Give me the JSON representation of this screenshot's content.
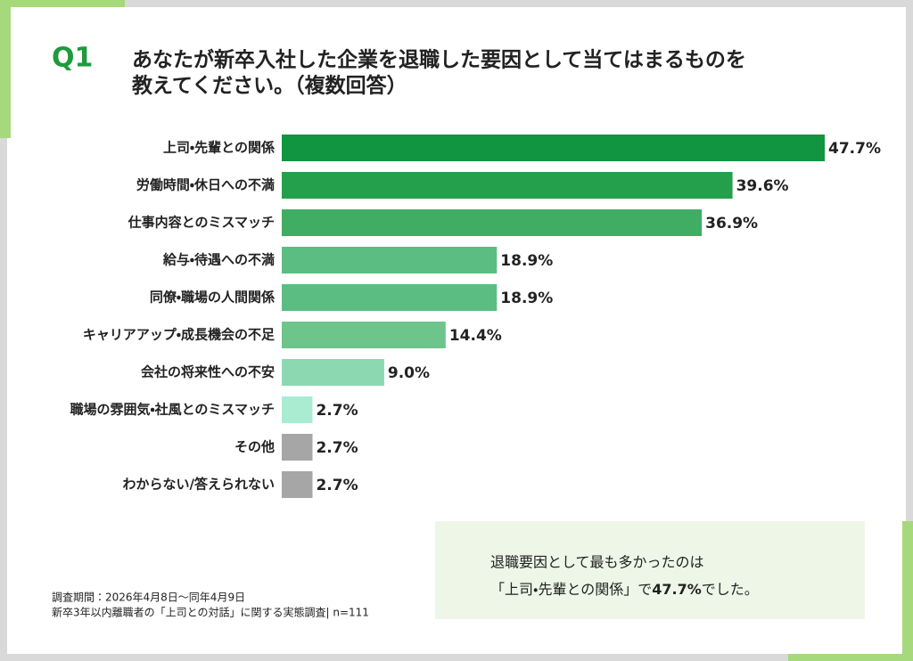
{
  "chart_data": {
    "type": "bar",
    "orientation": "horizontal",
    "label": "Q1",
    "title_lines": [
      "あなたが新卒入社した企業を退職した要因として当てはまるものを",
      "教えてください。（複数回答）"
    ],
    "categories": [
      "上司・先輩との関係",
      "労働時間・休日への不満",
      "仕事内容とのミスマッチ",
      "給与・待遇への不満",
      "同僚・職場の人間関係",
      "キャリアアップ・成長機会の不足",
      "会社の将来性への不安",
      "職場の雰囲気・社風とのミスマッチ",
      "その他",
      "わからない/答えられない"
    ],
    "values": [
      47.7,
      39.6,
      36.9,
      18.9,
      18.9,
      14.4,
      9.0,
      2.7,
      2.7,
      2.7
    ],
    "value_labels": [
      "47.7%",
      "39.6%",
      "36.9%",
      "18.9%",
      "18.9%",
      "14.4%",
      "9.0%",
      "2.7%",
      "2.7%",
      "2.7%"
    ],
    "colors": [
      "#119540",
      "#24a04d",
      "#3fae62",
      "#5cbd82",
      "#5cbd82",
      "#6dc58c",
      "#8cd9b1",
      "#a9ecd2",
      "#a6a6a6",
      "#a6a6a6"
    ],
    "notes": [
      "調査期間：2026年4月8日～同年4月9日",
      "新卒3年以内離職者の「上司との対話」に関する実態調査| n=111"
    ],
    "callout": {
      "line1": "退職要因として最も多かったのは",
      "line2_parts": [
        "「上司・先輩との関係」で",
        "47.7%",
        "でした。"
      ]
    }
  }
}
